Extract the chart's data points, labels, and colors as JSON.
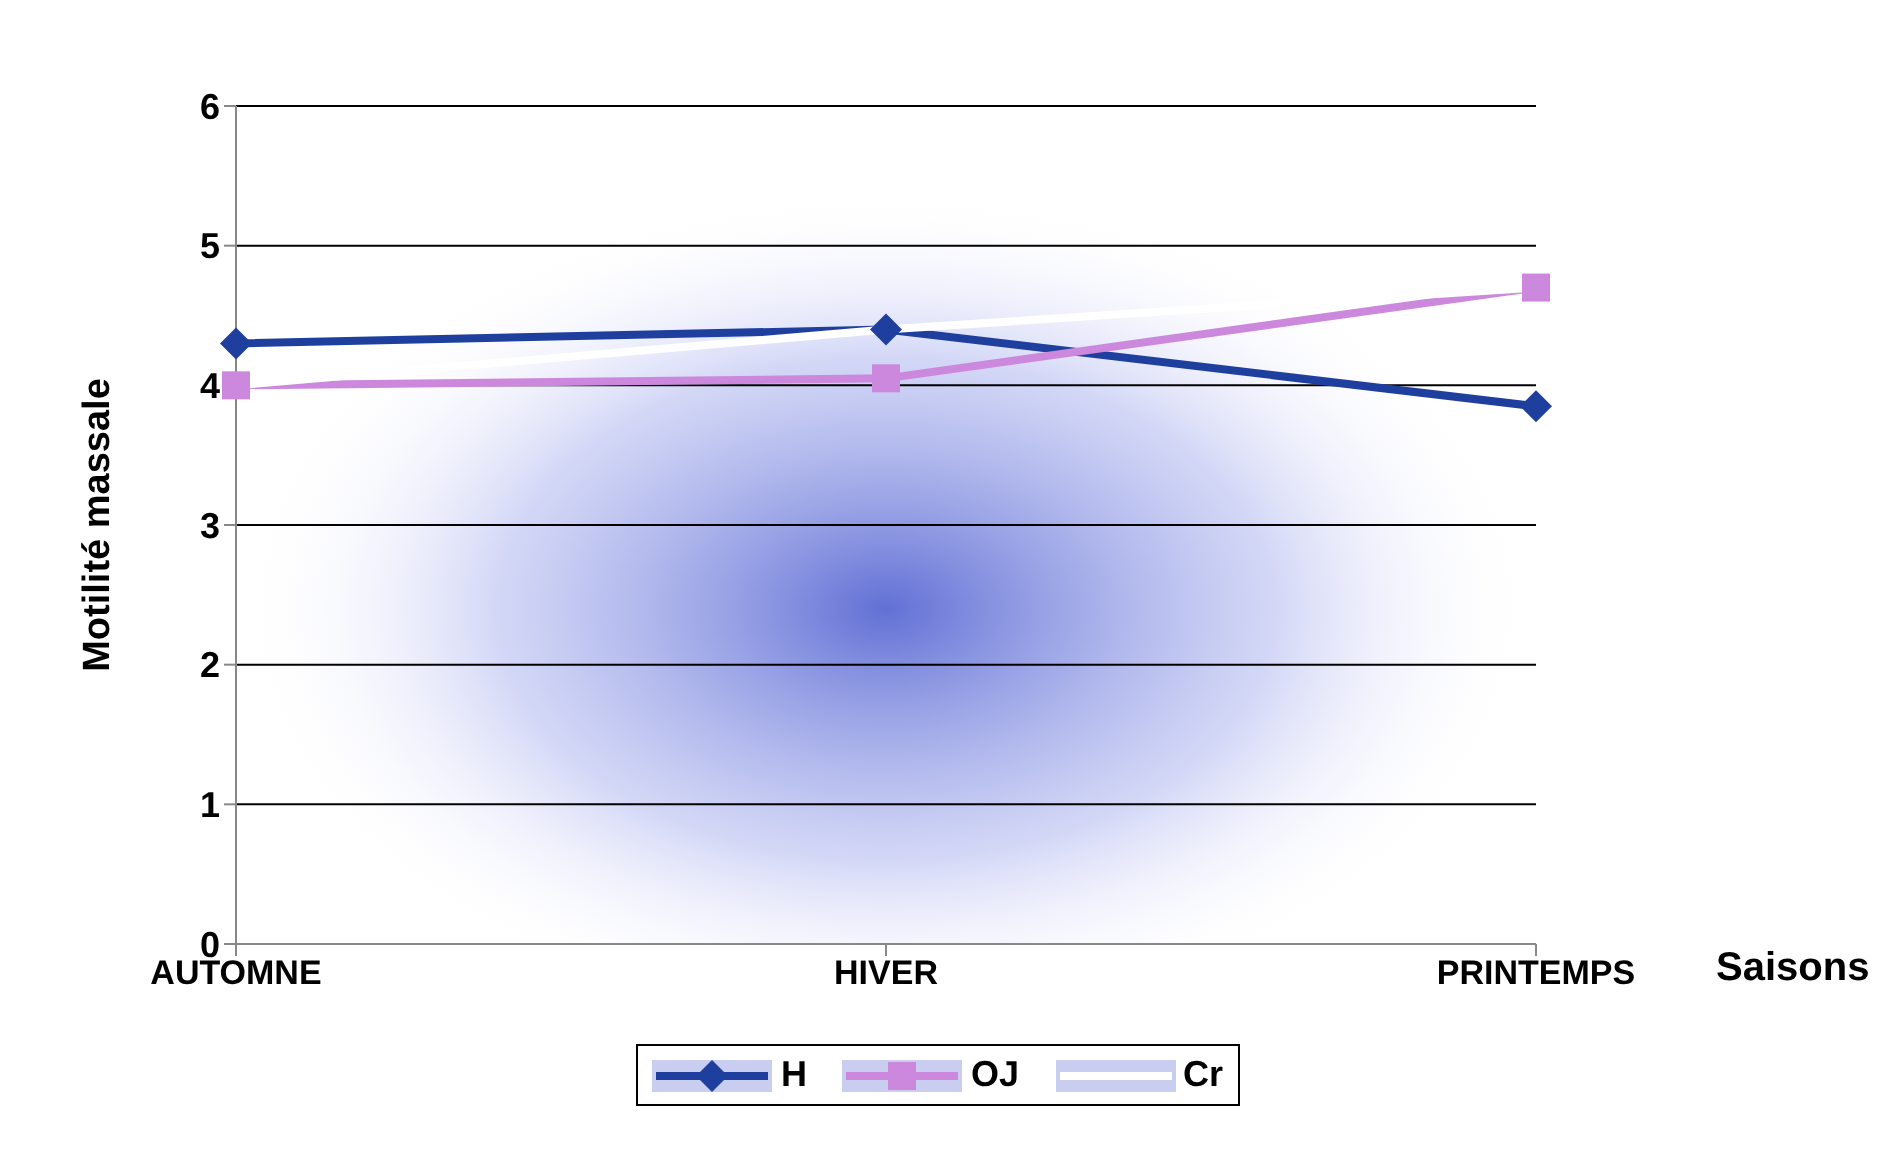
{
  "chart_data": {
    "type": "line",
    "ylabel": "Motilité massale",
    "xlabel": "Saisons",
    "categories": [
      "AUTOMNE",
      "HIVER",
      "PRINTEMPS"
    ],
    "series": [
      {
        "name": "H",
        "color": "#1f3f9f",
        "marker": "diamond",
        "values": [
          4.3,
          4.4,
          3.85
        ]
      },
      {
        "name": "OJ",
        "color": "#cc88dd",
        "marker": "square",
        "values": [
          4.0,
          4.05,
          4.7
        ]
      },
      {
        "name": "Cr",
        "color": "#ffffff",
        "marker": "none",
        "values": [
          4.0,
          4.4,
          4.7
        ]
      }
    ],
    "ylim": [
      0,
      6
    ],
    "yticks": [
      0,
      1,
      2,
      3,
      4,
      5,
      6
    ],
    "grid": "y",
    "legend": "bottom"
  }
}
